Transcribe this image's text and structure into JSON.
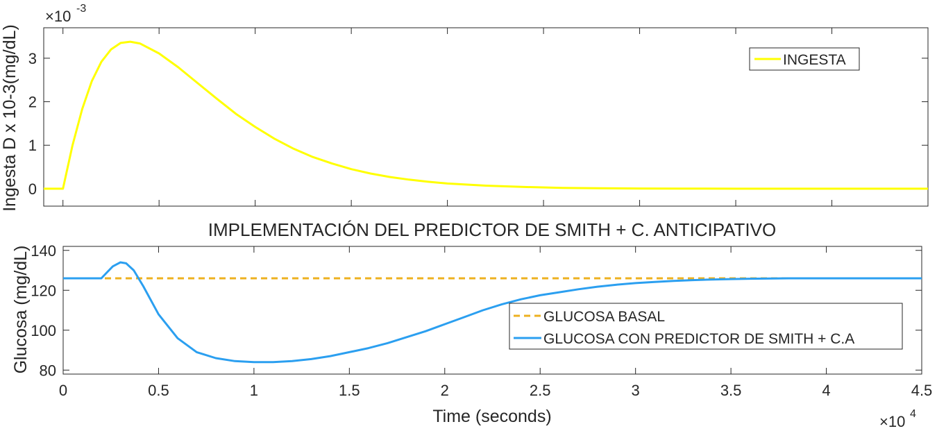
{
  "chart_data": [
    {
      "type": "line",
      "title": "",
      "xlabel": "",
      "ylabel": "Ingesta D x 10-3(mg/dL)",
      "y_exponent": {
        "base": "×10",
        "exp": "-3"
      },
      "xlim": [
        -1000,
        45000
      ],
      "ylim": [
        -0.4,
        3.7
      ],
      "x_ticks": [
        0,
        5000,
        10000,
        15000,
        20000,
        25000,
        30000,
        35000,
        40000,
        45000
      ],
      "y_ticks": [
        0,
        1,
        2,
        3
      ],
      "y_tick_labels": [
        "0",
        "1",
        "2",
        "3"
      ],
      "x_tick_labels_visible": false,
      "grid": false,
      "legend_position": "top-right",
      "series": [
        {
          "name": "INGESTA",
          "color": "#ffff00",
          "style": "solid",
          "x": [
            -1000,
            0,
            500,
            1000,
            1500,
            2000,
            2500,
            3000,
            3500,
            4000,
            5000,
            6000,
            7000,
            8000,
            9000,
            10000,
            11000,
            12000,
            13000,
            14000,
            15000,
            16000,
            17000,
            18000,
            19000,
            20000,
            22000,
            24000,
            26000,
            28000,
            30000,
            32000,
            35000,
            40000,
            45000
          ],
          "values": [
            0,
            0,
            1.0,
            1.83,
            2.47,
            2.92,
            3.2,
            3.35,
            3.38,
            3.34,
            3.11,
            2.79,
            2.43,
            2.07,
            1.72,
            1.42,
            1.15,
            0.92,
            0.73,
            0.58,
            0.45,
            0.35,
            0.27,
            0.21,
            0.16,
            0.12,
            0.07,
            0.04,
            0.02,
            0.01,
            0.006,
            0.003,
            0.001,
            0,
            0
          ]
        }
      ]
    },
    {
      "type": "line",
      "title": "IMPLEMENTACIÓN DEL PREDICTOR DE SMITH + C. ANTICIPATIVO",
      "xlabel": "Time (seconds)",
      "ylabel": "Glucosa (mg/dL)",
      "x_exponent": {
        "base": "×10",
        "exp": "4"
      },
      "xlim": [
        0,
        45000
      ],
      "ylim": [
        78,
        142
      ],
      "x_ticks": [
        0,
        5000,
        10000,
        15000,
        20000,
        25000,
        30000,
        35000,
        40000,
        45000
      ],
      "x_tick_labels": [
        "0",
        "0.5",
        "1",
        "1.5",
        "2",
        "2.5",
        "3",
        "3.5",
        "4",
        "4.5"
      ],
      "y_ticks": [
        80,
        100,
        120,
        140
      ],
      "y_tick_labels": [
        "80",
        "100",
        "120",
        "140"
      ],
      "grid": false,
      "legend_position": "bottom-right",
      "series": [
        {
          "name": "GLUCOSA BASAL",
          "color": "#edb120",
          "style": "dashed",
          "x": [
            0,
            45000
          ],
          "values": [
            126,
            126
          ]
        },
        {
          "name": "GLUCOSA CON PREDICTOR DE SMITH + C.A",
          "color": "#2b9ff0",
          "style": "solid",
          "x": [
            0,
            2000,
            2300,
            2600,
            3000,
            3300,
            3700,
            4200,
            5000,
            6000,
            7000,
            8000,
            9000,
            10000,
            11000,
            12000,
            13000,
            14000,
            15000,
            16000,
            17000,
            18000,
            19000,
            20000,
            21000,
            22000,
            23000,
            24000,
            25000,
            26000,
            27000,
            28000,
            29000,
            30000,
            31000,
            32000,
            33000,
            34000,
            35000,
            36000,
            38000,
            40000,
            42000,
            45000
          ],
          "values": [
            126,
            126,
            129,
            132,
            134,
            133.5,
            130,
            122,
            108,
            96,
            89,
            86,
            84.5,
            84,
            84,
            84.5,
            85.5,
            87,
            89,
            91,
            93.5,
            96.5,
            99.5,
            103,
            106.5,
            110,
            113,
            115.5,
            117.5,
            119,
            120.5,
            121.8,
            122.8,
            123.6,
            124.2,
            124.7,
            125.1,
            125.4,
            125.6,
            125.8,
            126,
            126,
            126,
            126
          ]
        }
      ]
    }
  ]
}
